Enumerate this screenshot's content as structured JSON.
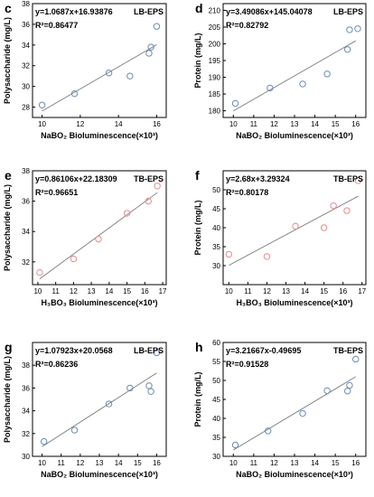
{
  "chart_data": [
    {
      "type": "scatter",
      "letter": "c",
      "equation": "y=1.0687x+16.93876",
      "r2": "R²=0.86477",
      "tag": "LB-EPS",
      "xlabel": "NaBO₂ Bioluminescence(×10³)",
      "ylabel": "Polysaccharide (mg/L)",
      "xlim": [
        9.5,
        16.5
      ],
      "ylim": [
        27,
        38
      ],
      "xticks": [
        "10",
        "12",
        "14",
        "16"
      ],
      "yticks": [
        "28",
        "30",
        "32",
        "34",
        "36",
        "38"
      ],
      "marker_color": "#6b8bb3",
      "points": [
        [
          10.0,
          28.2
        ],
        [
          11.7,
          29.3
        ],
        [
          13.5,
          31.3
        ],
        [
          14.6,
          31.0
        ],
        [
          15.6,
          33.2
        ],
        [
          15.7,
          33.8
        ],
        [
          16.0,
          35.8
        ]
      ],
      "fit": [
        [
          10.0,
          27.62
        ],
        [
          16.0,
          34.03
        ]
      ]
    },
    {
      "type": "scatter",
      "letter": "d",
      "equation": "y=3.49086x+145.04078",
      "r2": "R²=0.82792",
      "tag": "LB-EPS",
      "xlabel": "NaBO₂ Bioluminescence(×10³)",
      "ylabel": "Protein (mg/L)",
      "xlim": [
        9.5,
        16.5
      ],
      "ylim": [
        178,
        212
      ],
      "xticks": [
        "10",
        "11",
        "12",
        "13",
        "14",
        "15",
        "16"
      ],
      "yticks": [
        "180",
        "185",
        "190",
        "195",
        "200",
        "205",
        "210"
      ],
      "marker_color": "#6b8bb3",
      "points": [
        [
          10.1,
          182.2
        ],
        [
          11.8,
          186.8
        ],
        [
          13.4,
          188.0
        ],
        [
          14.6,
          191.0
        ],
        [
          15.6,
          198.3
        ],
        [
          15.7,
          204.2
        ],
        [
          16.1,
          204.5
        ]
      ],
      "fit": [
        [
          10.0,
          179.95
        ],
        [
          16.0,
          200.89
        ]
      ]
    },
    {
      "type": "scatter",
      "letter": "e",
      "equation": "y=0.86106x+22.18309",
      "r2": "R²=0.96651",
      "tag": "TB-EPS",
      "xlabel": "H₃BO₃ Bioluminescence(×10³)",
      "ylabel": "Polysaccharide (mg/L)",
      "xlim": [
        9.7,
        17.2
      ],
      "ylim": [
        30.5,
        38
      ],
      "xticks": [
        "10",
        "11",
        "12",
        "13",
        "14",
        "15",
        "16",
        "17"
      ],
      "yticks": [
        "32",
        "34",
        "36",
        "38"
      ],
      "marker_color": "#e38b8b",
      "points": [
        [
          10.1,
          31.3
        ],
        [
          12.0,
          32.2
        ],
        [
          13.4,
          33.5
        ],
        [
          15.0,
          35.2
        ],
        [
          16.2,
          36.0
        ],
        [
          16.7,
          37.0
        ]
      ],
      "fit": [
        [
          10.1,
          30.88
        ],
        [
          16.7,
          36.56
        ]
      ]
    },
    {
      "type": "scatter",
      "letter": "f",
      "equation": "y=2.68x+3.29324",
      "r2": "R²=0.80178",
      "tag": "TB-EPS",
      "xlabel": "H₃BO₃ Bioluminescence(×10³)",
      "ylabel": "Protein (mg/L)",
      "xlim": [
        9.7,
        17.2
      ],
      "ylim": [
        25,
        55
      ],
      "xticks": [
        "10",
        "11",
        "12",
        "13",
        "14",
        "15",
        "16",
        "17"
      ],
      "yticks": [
        "30",
        "35",
        "40",
        "45",
        "50"
      ],
      "marker_color": "#e38b8b",
      "points": [
        [
          10.0,
          33.0
        ],
        [
          12.0,
          32.4
        ],
        [
          13.5,
          40.4
        ],
        [
          15.0,
          40.0
        ],
        [
          15.5,
          45.8
        ],
        [
          16.2,
          44.5
        ],
        [
          16.8,
          52.4
        ]
      ],
      "fit": [
        [
          10.0,
          30.09
        ],
        [
          16.8,
          48.32
        ]
      ]
    },
    {
      "type": "scatter",
      "letter": "g",
      "equation": "y=1.07923x+20.0568",
      "r2": "R²=0.86236",
      "tag": "LB-EPS",
      "xlabel": "NaBO₂ Bioluminescence(×10³)",
      "ylabel": "Polysaccharide (mg/L)",
      "xlim": [
        9.5,
        16.5
      ],
      "ylim": [
        30,
        40
      ],
      "xticks": [
        "10",
        "11",
        "12",
        "13",
        "14",
        "15",
        "16"
      ],
      "yticks": [
        "30",
        "32",
        "34",
        "36",
        "38"
      ],
      "marker_color": "#6b8bb3",
      "points": [
        [
          10.1,
          31.3
        ],
        [
          11.7,
          32.3
        ],
        [
          13.5,
          34.6
        ],
        [
          14.6,
          36.0
        ],
        [
          15.6,
          36.2
        ],
        [
          15.7,
          35.7
        ],
        [
          16.0,
          39.1
        ]
      ],
      "fit": [
        [
          10.0,
          30.85
        ],
        [
          16.0,
          37.32
        ]
      ]
    },
    {
      "type": "scatter",
      "letter": "h",
      "equation": "y=3.21667x-0.49695",
      "r2": "R²=0.91528",
      "tag": "TB-EPS",
      "xlabel": "NaBO₂ Bioluminescence(×10³)",
      "ylabel": "Protein (mg/L)",
      "xlim": [
        9.5,
        16.5
      ],
      "ylim": [
        30,
        60
      ],
      "xticks": [
        "10",
        "11",
        "12",
        "13",
        "14",
        "15",
        "16"
      ],
      "yticks": [
        "30",
        "35",
        "40",
        "45",
        "50",
        "55",
        "60"
      ],
      "marker_color": "#6b8bb3",
      "points": [
        [
          10.1,
          33.0
        ],
        [
          11.7,
          36.7
        ],
        [
          13.4,
          41.3
        ],
        [
          14.6,
          47.3
        ],
        [
          15.6,
          47.2
        ],
        [
          15.7,
          48.7
        ],
        [
          16.0,
          55.6
        ]
      ],
      "fit": [
        [
          10.0,
          31.67
        ],
        [
          16.0,
          50.97
        ]
      ]
    }
  ]
}
